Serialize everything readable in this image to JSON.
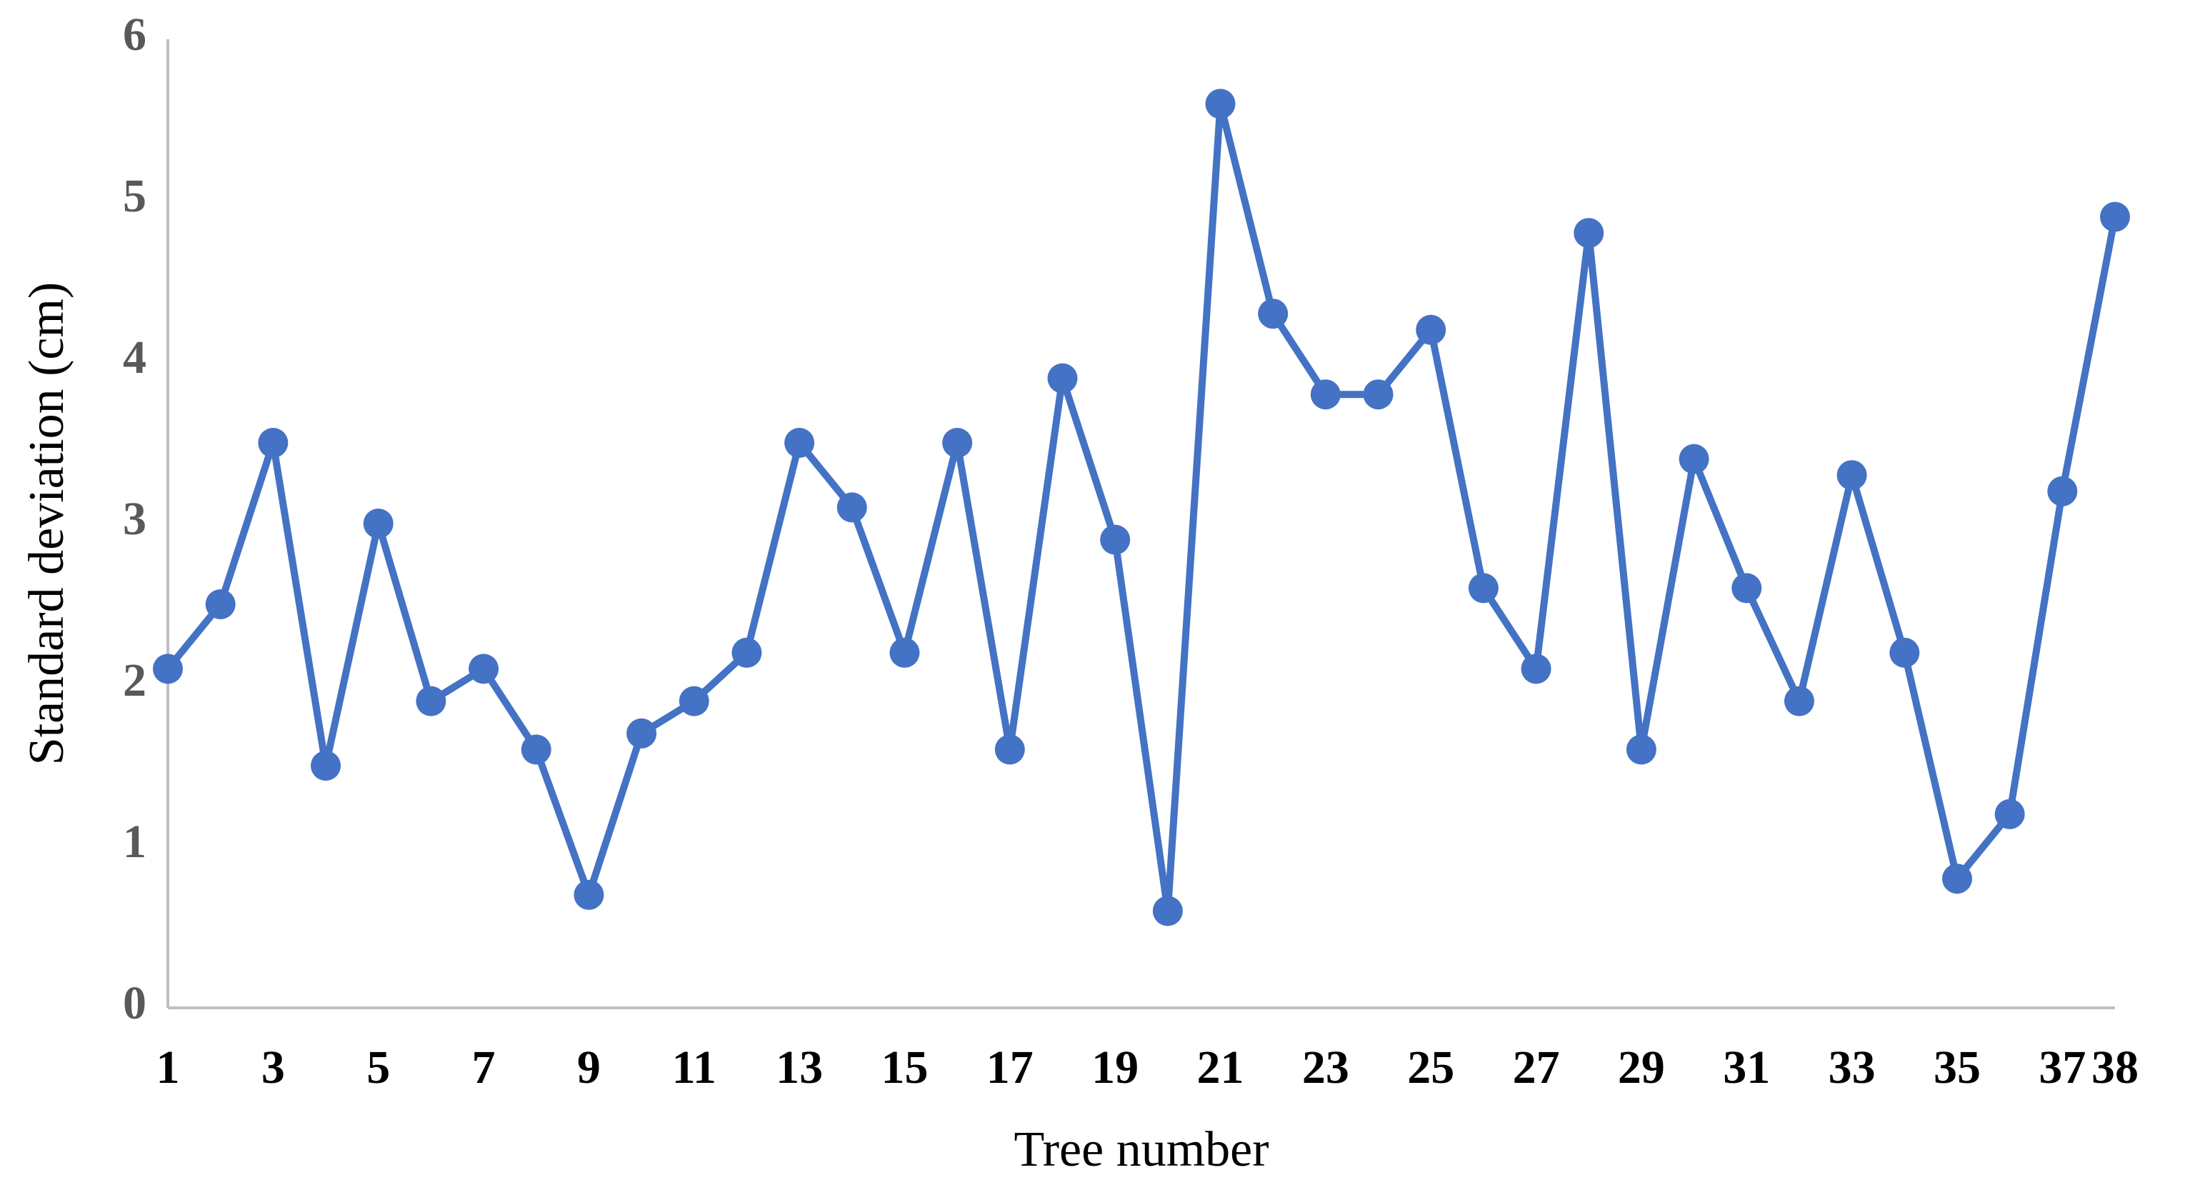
{
  "chart_data": {
    "type": "line",
    "x_label": "Tree number",
    "y_label": "Standard deviation (cm)",
    "x": [
      1,
      2,
      3,
      4,
      5,
      6,
      7,
      8,
      9,
      10,
      11,
      12,
      13,
      14,
      15,
      16,
      17,
      18,
      19,
      20,
      21,
      22,
      23,
      24,
      25,
      26,
      27,
      28,
      29,
      30,
      31,
      32,
      33,
      34,
      35,
      36,
      37,
      38
    ],
    "series": [
      {
        "color": "#4472c4",
        "values": [
          2.1,
          2.5,
          3.5,
          1.5,
          3.0,
          1.9,
          2.1,
          1.6,
          0.7,
          1.7,
          1.9,
          2.2,
          3.5,
          3.1,
          2.2,
          3.5,
          1.6,
          3.9,
          2.9,
          0.6,
          5.6,
          4.3,
          3.8,
          3.8,
          4.2,
          2.6,
          2.1,
          4.8,
          1.6,
          3.4,
          2.6,
          1.9,
          3.3,
          2.2,
          0.8,
          1.2,
          3.2,
          4.9
        ]
      }
    ],
    "xlim": [
      1,
      38
    ],
    "xticks": [
      1,
      3,
      5,
      7,
      9,
      11,
      13,
      15,
      17,
      19,
      21,
      23,
      25,
      27,
      29,
      31,
      33,
      35,
      37,
      38
    ],
    "ylim": [
      0,
      6
    ],
    "yticks": [
      0,
      1,
      2,
      3,
      4,
      5,
      6
    ],
    "grid": false
  }
}
